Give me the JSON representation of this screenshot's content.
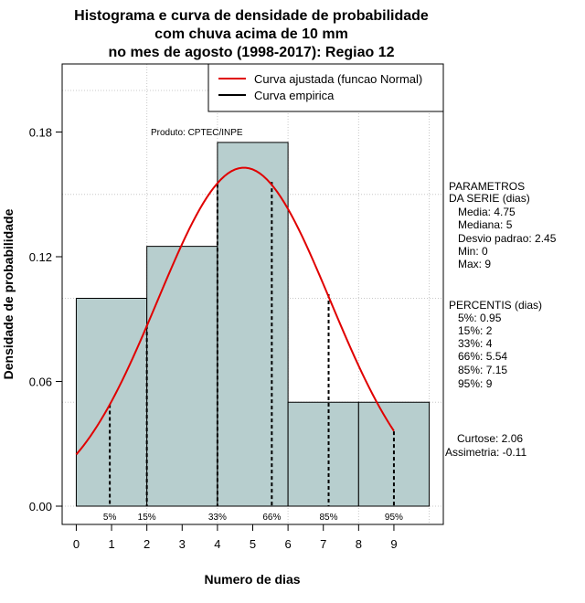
{
  "chart_data": {
    "type": "bar",
    "title": [
      "Histograma e curva de densidade de probabilidade",
      "com chuva acima de 10 mm",
      "no mes de agosto (1998-2017): Regiao 12"
    ],
    "xlabel": "Numero de dias",
    "ylabel": "Densidade de probabilidade",
    "xlim": [
      -0.4,
      10.4
    ],
    "ylim": [
      0,
      0.2
    ],
    "x_ticks": [
      0,
      1,
      2,
      3,
      4,
      5,
      6,
      7,
      8,
      9
    ],
    "y_ticks": [
      "0.00",
      "0.06",
      "0.12",
      "0.18"
    ],
    "bins": [
      {
        "from": 0,
        "to": 2,
        "density": 0.1
      },
      {
        "from": 2,
        "to": 4,
        "density": 0.125
      },
      {
        "from": 4,
        "to": 6,
        "density": 0.175
      },
      {
        "from": 6,
        "to": 8,
        "density": 0.05
      },
      {
        "from": 8,
        "to": 10,
        "density": 0.05
      }
    ],
    "bar_color": "#b7cece",
    "curve": {
      "name": "Curva ajustada (funcao Normal)",
      "color": "#e00000",
      "mean": 4.75,
      "sd": 2.45,
      "x_from": 0,
      "x_to": 9
    },
    "legend": {
      "position": "top-right",
      "entries": [
        {
          "label": "Curva ajustada (funcao Normal)",
          "color": "#e00000"
        },
        {
          "label": "Curva empirica",
          "color": "#000000"
        }
      ]
    },
    "percentile_lines": [
      {
        "label": "5%",
        "x": 0.95,
        "y": 0.049
      },
      {
        "label": "15%",
        "x": 2,
        "y": 0.087
      },
      {
        "label": "33%",
        "x": 4,
        "y": 0.155
      },
      {
        "label": "66%",
        "x": 5.54,
        "y": 0.156
      },
      {
        "label": "85%",
        "x": 7.15,
        "y": 0.102
      },
      {
        "label": "95%",
        "x": 9,
        "y": 0.036
      }
    ],
    "grid": true,
    "annotation": "Produto: CPTEC/INPE"
  },
  "sidebar": {
    "parametros": [
      "PARAMETROS",
      "DA SERIE (dias)",
      "   Media: 4.75",
      "   Mediana: 5",
      "   Desvio padrao: 2.45",
      "   Min: 0",
      "   Max: 9"
    ],
    "percentis": [
      "PERCENTIS (dias)",
      "   5%: 0.95",
      "   15%: 2",
      "   33%: 4",
      "   66%: 5.54",
      "   85%: 7.15",
      "   95%: 9"
    ],
    "curtose": "Curtose: 2.06",
    "assimetria": "Assimetria: -0.11"
  }
}
